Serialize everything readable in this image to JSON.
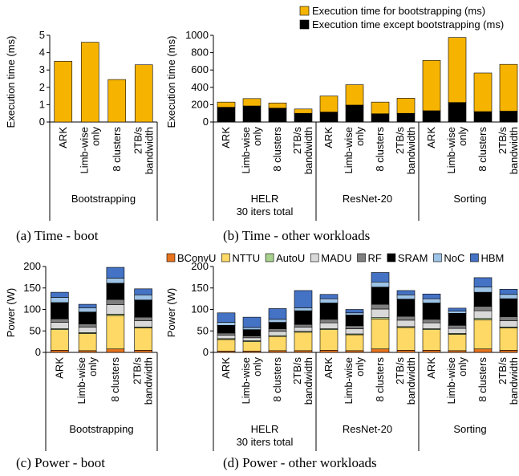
{
  "colors": {
    "boot": "#F6B400",
    "except": "#000000",
    "BConvU": "#E8731E",
    "NTTU": "#FFD966",
    "AutoU": "#A9D18E",
    "MADU": "#D9D9D9",
    "RF": "#7F7F7F",
    "SRAM": "#000000",
    "NoC": "#9DC3E6",
    "HBM": "#4472C4"
  },
  "legend_time": [
    {
      "key": "boot",
      "label": "Execution time for bootstrapping (ms)"
    },
    {
      "key": "except",
      "label": "Execution time except bootstrapping (ms)"
    }
  ],
  "legend_power": [
    {
      "key": "BConvU",
      "label": "BConvU"
    },
    {
      "key": "NTTU",
      "label": "NTTU"
    },
    {
      "key": "AutoU",
      "label": "AutoU"
    },
    {
      "key": "MADU",
      "label": "MADU"
    },
    {
      "key": "RF",
      "label": "RF"
    },
    {
      "key": "SRAM",
      "label": "SRAM"
    },
    {
      "key": "NoC",
      "label": "NoC"
    },
    {
      "key": "HBM",
      "label": "HBM"
    }
  ],
  "chart_data": [
    {
      "id": "a",
      "type": "bar",
      "caption": "(a) Time - boot",
      "ylabel": "Execution time (ms)",
      "ylim": [
        0,
        5
      ],
      "yticks": [
        0,
        1,
        2,
        3,
        4,
        5
      ],
      "groups": [
        {
          "label": "Bootstrapping",
          "categories": [
            "ARK",
            "Limb-wise only",
            "8 clusters",
            "2TB/s bandwidth"
          ]
        }
      ],
      "series": [
        {
          "key": "boot",
          "values": [
            3.5,
            4.6,
            2.45,
            3.3
          ]
        }
      ]
    },
    {
      "id": "b",
      "type": "bar",
      "stacked": true,
      "caption": "(b) Time - other workloads",
      "ylabel": "Execution time (ms)",
      "ylim": [
        0,
        1000
      ],
      "yticks": [
        0,
        200,
        400,
        600,
        800,
        1000
      ],
      "groups": [
        {
          "label": "HELR\n30 iters total",
          "categories": [
            "ARK",
            "Limb-wise only",
            "8 clusters",
            "2TB/s bandwidth"
          ]
        },
        {
          "label": "ResNet-20",
          "categories": [
            "ARK",
            "Limb-wise only",
            "8 clusters",
            "2TB/s bandwidth"
          ]
        },
        {
          "label": "Sorting",
          "categories": [
            "ARK",
            "Limb-wise only",
            "8 clusters",
            "2TB/s bandwidth"
          ]
        }
      ],
      "series": [
        {
          "key": "except",
          "values": [
            170,
            185,
            160,
            100,
            115,
            195,
            95,
            100,
            130,
            225,
            120,
            125
          ]
        },
        {
          "key": "boot",
          "values": [
            60,
            85,
            60,
            50,
            185,
            235,
            135,
            175,
            580,
            750,
            445,
            540
          ]
        }
      ]
    },
    {
      "id": "c",
      "type": "bar",
      "stacked": true,
      "caption": "(c) Power - boot",
      "ylabel": "Power (W)",
      "ylim": [
        0,
        200
      ],
      "yticks": [
        0,
        50,
        100,
        150,
        200
      ],
      "groups": [
        {
          "label": "Bootstrapping",
          "categories": [
            "ARK",
            "Limb-wise only",
            "8 clusters",
            "2TB/s bandwidth"
          ]
        }
      ],
      "series": [
        {
          "key": "BConvU",
          "values": [
            5,
            4,
            8,
            5
          ]
        },
        {
          "key": "NTTU",
          "values": [
            48,
            40,
            78,
            52
          ]
        },
        {
          "key": "AutoU",
          "values": [
            2,
            2,
            3,
            2
          ]
        },
        {
          "key": "MADU",
          "values": [
            15,
            13,
            22,
            15
          ]
        },
        {
          "key": "RF",
          "values": [
            8,
            7,
            12,
            8
          ]
        },
        {
          "key": "SRAM",
          "values": [
            38,
            28,
            38,
            40
          ]
        },
        {
          "key": "NoC",
          "values": [
            12,
            10,
            12,
            12
          ]
        },
        {
          "key": "HBM",
          "values": [
            12,
            8,
            25,
            14
          ]
        }
      ]
    },
    {
      "id": "d",
      "type": "bar",
      "stacked": true,
      "caption": "(d) Power - other workloads",
      "ylabel": "Power (W)",
      "ylim": [
        0,
        200
      ],
      "yticks": [
        0,
        50,
        100,
        150,
        200
      ],
      "groups": [
        {
          "label": "HELR\n30 iters total",
          "categories": [
            "ARK",
            "Limb-wise only",
            "8 clusters",
            "2TB/s bandwidth"
          ]
        },
        {
          "label": "ResNet-20",
          "categories": [
            "ARK",
            "Limb-wise only",
            "8 clusters",
            "2TB/s bandwidth"
          ]
        },
        {
          "label": "Sorting",
          "categories": [
            "ARK",
            "Limb-wise only",
            "8 clusters",
            "2TB/s bandwidth"
          ]
        }
      ],
      "series": [
        {
          "key": "BConvU",
          "values": [
            3,
            3,
            4,
            4,
            5,
            4,
            8,
            5,
            5,
            4,
            8,
            5
          ]
        },
        {
          "key": "NTTU",
          "values": [
            27,
            22,
            33,
            43,
            48,
            37,
            70,
            53,
            48,
            38,
            68,
            52
          ]
        },
        {
          "key": "AutoU",
          "values": [
            2,
            2,
            2,
            2,
            2,
            2,
            3,
            2,
            2,
            2,
            3,
            2
          ]
        },
        {
          "key": "MADU",
          "values": [
            8,
            7,
            10,
            10,
            14,
            12,
            20,
            15,
            14,
            12,
            18,
            15
          ]
        },
        {
          "key": "RF",
          "values": [
            5,
            4,
            6,
            6,
            8,
            7,
            11,
            9,
            8,
            7,
            10,
            9
          ]
        },
        {
          "key": "SRAM",
          "values": [
            18,
            15,
            15,
            32,
            38,
            25,
            40,
            40,
            38,
            28,
            33,
            42
          ]
        },
        {
          "key": "NoC",
          "values": [
            7,
            5,
            7,
            7,
            10,
            5,
            12,
            10,
            10,
            5,
            12,
            10
          ]
        },
        {
          "key": "HBM",
          "values": [
            22,
            24,
            25,
            40,
            10,
            8,
            22,
            10,
            11,
            7,
            22,
            12
          ]
        }
      ]
    }
  ]
}
